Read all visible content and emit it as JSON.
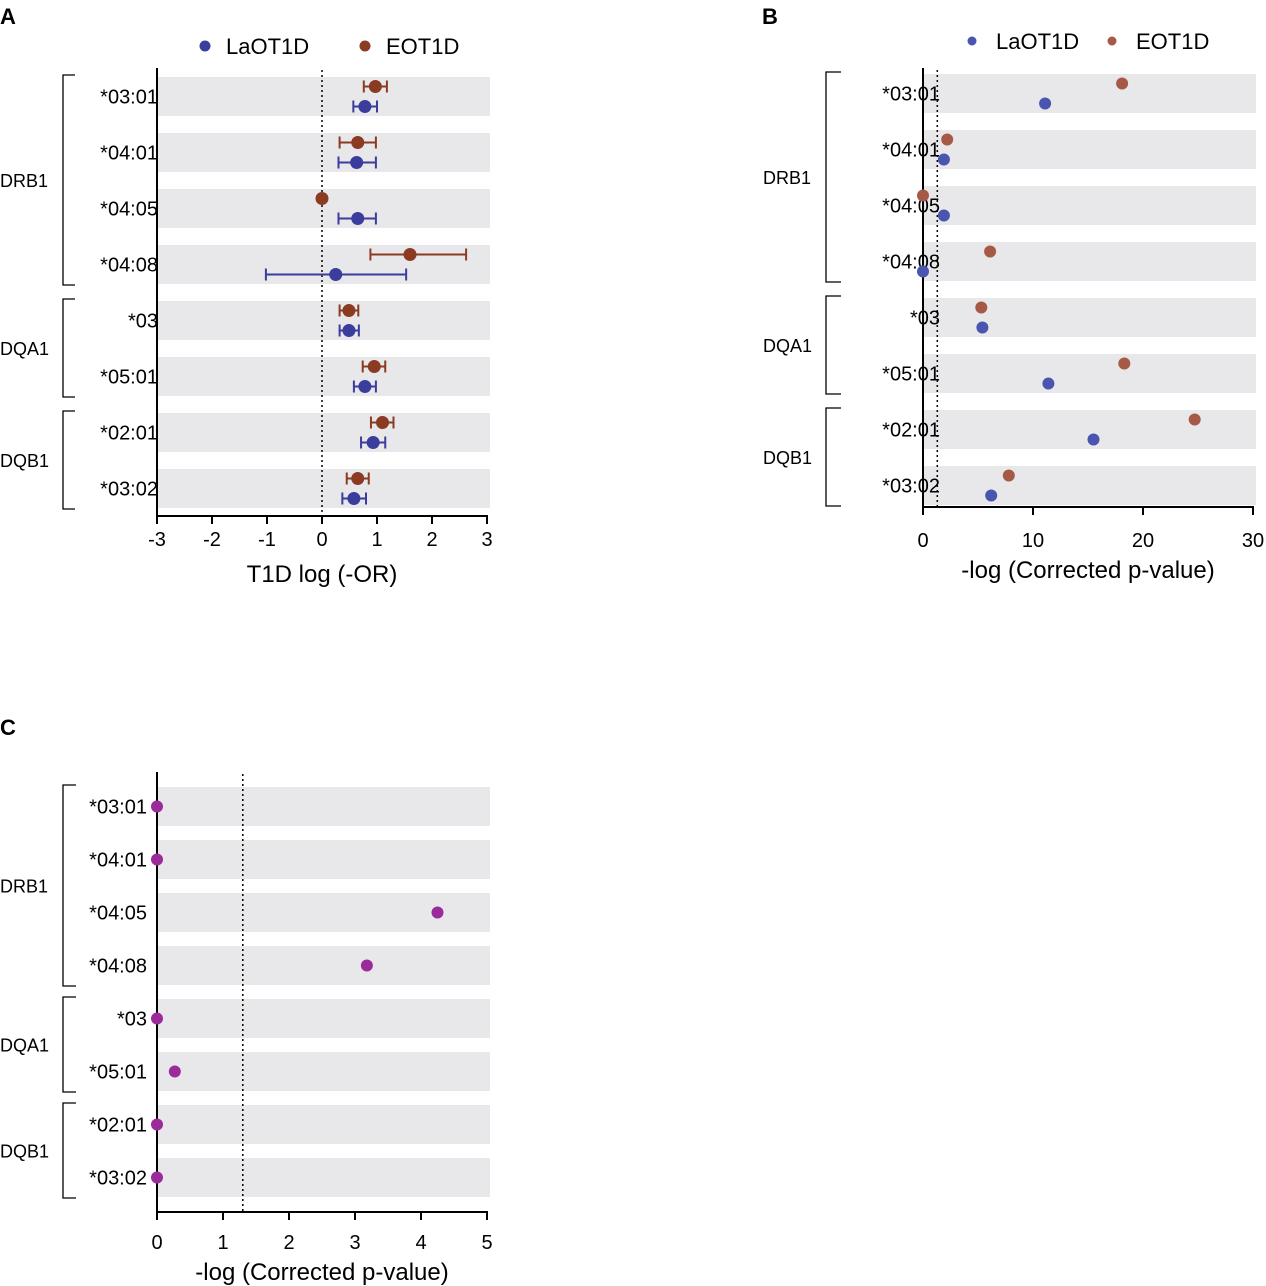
{
  "colors": {
    "laot1d": "#3a3d9c",
    "eot1d": "#8a3b22",
    "laot1d_light": "#4a55b0",
    "eot1d_light": "#a65a45",
    "purple": "#9b2a9b",
    "band": "#e8e8ea"
  },
  "chart_data": [
    {
      "panel": "A",
      "type": "scatter",
      "title": "",
      "xlabel": "T1D log (-OR)",
      "ylabel": "",
      "xlim": [
        -3,
        3
      ],
      "xticks": [
        "-3",
        "-2",
        "-1",
        "0",
        "1",
        "2",
        "3"
      ],
      "reference_line": 0,
      "categories": [
        "*03:01",
        "*04:01",
        "*04:05",
        "*04:08",
        "*03",
        "*05:01",
        "*02:01",
        "*03:02"
      ],
      "groups": [
        {
          "name": "DRB1",
          "start": 0,
          "end": 3
        },
        {
          "name": "DQA1",
          "start": 4,
          "end": 5
        },
        {
          "name": "DQB1",
          "start": 6,
          "end": 7
        }
      ],
      "legend": [
        "LaOT1D",
        "EOT1D"
      ],
      "series": [
        {
          "name": "LaOT1D",
          "color": "#3a3d9c",
          "values": [
            0.78,
            0.63,
            0.65,
            0.25,
            0.49,
            0.78,
            0.93,
            0.58
          ],
          "lower": [
            0.57,
            0.3,
            0.3,
            -1.02,
            0.32,
            0.58,
            0.71,
            0.37
          ],
          "upper": [
            1.0,
            0.98,
            0.98,
            1.53,
            0.67,
            0.98,
            1.15,
            0.8
          ]
        },
        {
          "name": "EOT1D",
          "color": "#8a3b22",
          "values": [
            0.97,
            0.65,
            0.0,
            1.6,
            0.49,
            0.95,
            1.1,
            0.65
          ],
          "lower": [
            0.76,
            0.32,
            0.0,
            0.88,
            0.32,
            0.74,
            0.89,
            0.45
          ],
          "upper": [
            1.18,
            0.98,
            0.0,
            2.62,
            0.66,
            1.15,
            1.3,
            0.85
          ]
        }
      ]
    },
    {
      "panel": "B",
      "type": "scatter",
      "title": "",
      "xlabel": "-log (Corrected p-value)",
      "ylabel": "",
      "xlim": [
        0,
        30
      ],
      "xticks": [
        "0",
        "10",
        "20",
        "30"
      ],
      "reference_line": 1.3,
      "categories": [
        "*03:01",
        "*04:01",
        "*04:05",
        "*04:08",
        "*03",
        "*05:01",
        "*02:01",
        "*03:02"
      ],
      "groups": [
        {
          "name": "DRB1",
          "start": 0,
          "end": 3
        },
        {
          "name": "DQA1",
          "start": 4,
          "end": 5
        },
        {
          "name": "DQB1",
          "start": 6,
          "end": 7
        }
      ],
      "legend": [
        "LaOT1D",
        "EOT1D"
      ],
      "series": [
        {
          "name": "LaOT1D",
          "color": "#4a55b0",
          "values": [
            11.1,
            1.9,
            1.9,
            0.0,
            5.4,
            11.4,
            15.5,
            6.2
          ]
        },
        {
          "name": "EOT1D",
          "color": "#a65a45",
          "values": [
            18.1,
            2.2,
            0.0,
            6.1,
            5.3,
            18.3,
            24.7,
            7.8
          ]
        }
      ]
    },
    {
      "panel": "C",
      "type": "scatter",
      "title": "",
      "xlabel": "-log (Corrected p-value)",
      "ylabel": "",
      "xlim": [
        0,
        5
      ],
      "xticks": [
        "0",
        "1",
        "2",
        "3",
        "4",
        "5"
      ],
      "reference_line": 1.3,
      "categories": [
        "*03:01",
        "*04:01",
        "*04:05",
        "*04:08",
        "*03",
        "*05:01",
        "*02:01",
        "*03:02"
      ],
      "groups": [
        {
          "name": "DRB1",
          "start": 0,
          "end": 3
        },
        {
          "name": "DQA1",
          "start": 4,
          "end": 5
        },
        {
          "name": "DQB1",
          "start": 6,
          "end": 7
        }
      ],
      "legend": [],
      "series": [
        {
          "name": "",
          "color": "#9b2a9b",
          "values": [
            0.0,
            0.0,
            4.25,
            3.18,
            0.0,
            0.27,
            0.0,
            0.0
          ]
        }
      ]
    }
  ]
}
